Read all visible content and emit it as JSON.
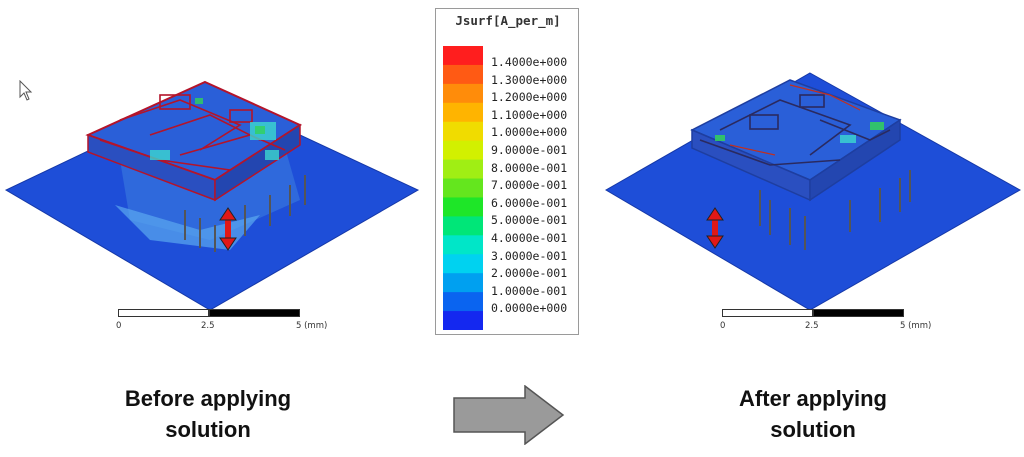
{
  "legend": {
    "title": "Jsurf[A_per_m]",
    "ticks": [
      "1.4000e+000",
      "1.3000e+000",
      "1.2000e+000",
      "1.1000e+000",
      "1.0000e+000",
      "9.0000e-001",
      "8.0000e-001",
      "7.0000e-001",
      "6.0000e-001",
      "5.0000e-001",
      "4.0000e-001",
      "3.0000e-001",
      "2.0000e-001",
      "1.0000e-001",
      "0.0000e+000"
    ],
    "colors": [
      "#ff1e1e",
      "#ff5a14",
      "#ff8c0a",
      "#ffb400",
      "#f0dc00",
      "#d2f000",
      "#a0ee14",
      "#64e61e",
      "#1ee628",
      "#00e678",
      "#00e6c8",
      "#00d2f0",
      "#00a0f0",
      "#0a64f0",
      "#1428f0"
    ]
  },
  "left_panel": {
    "caption_line1": "Before applying",
    "caption_line2": "solution",
    "scale": {
      "min": "0",
      "mid": "2.5",
      "max": "5 (mm)"
    }
  },
  "right_panel": {
    "caption_line1": "After applying",
    "caption_line2": "solution",
    "scale": {
      "min": "0",
      "mid": "2.5",
      "max": "5 (mm)"
    }
  },
  "colors": {
    "plane": "#1e4ed8",
    "trace": "#b4142a",
    "arrow_fill": "#9a9a9a",
    "marker": "#e01818"
  }
}
